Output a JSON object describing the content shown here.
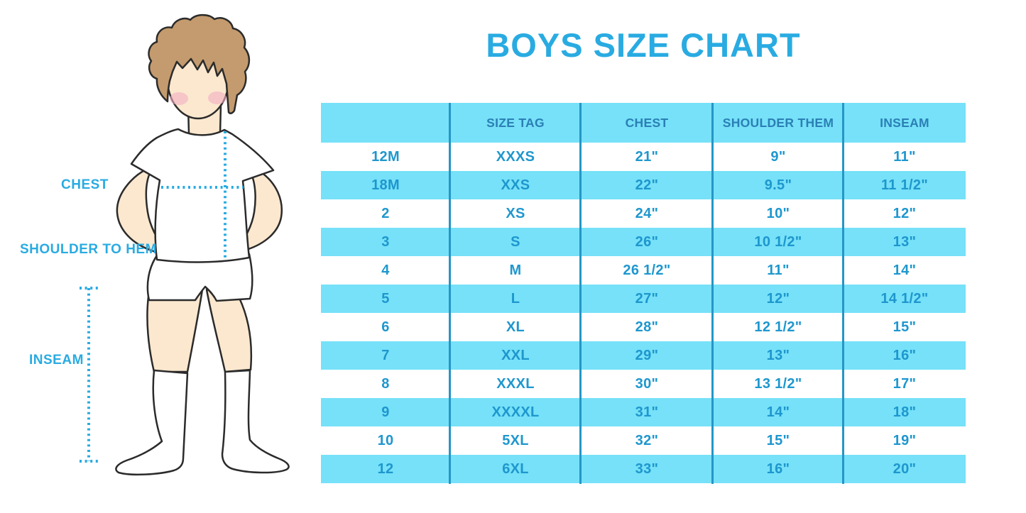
{
  "title": "BOYS SIZE CHART",
  "colors": {
    "title_blue": "#29ABE2",
    "label_blue": "#29ABE2",
    "table_band_cyan": "#76E1F8",
    "header_text_blue": "#2B7FB5",
    "cell_text_blue": "#1E97CE",
    "grid_line_blue": "#2596C6",
    "hair_brown": "#C49B6E",
    "skin_tone": "#FBE8CF",
    "cheek_pink": "#F2AEC1"
  },
  "figure": {
    "labels": {
      "chest": "CHEST",
      "shoulder_to_hem": "SHOULDER TO HEM",
      "inseam": "INSEAM"
    }
  },
  "chart_data": {
    "type": "table",
    "title": "BOYS SIZE CHART",
    "columns": [
      "",
      "SIZE TAG",
      "CHEST",
      "SHOULDER THEM",
      "INSEAM"
    ],
    "rows": [
      [
        "12M",
        "XXXS",
        "21\"",
        "9\"",
        "11\""
      ],
      [
        "18M",
        "XXS",
        "22\"",
        "9.5\"",
        "11 1/2\""
      ],
      [
        "2",
        "XS",
        "24\"",
        "10\"",
        "12\""
      ],
      [
        "3",
        "S",
        "26\"",
        "10 1/2\"",
        "13\""
      ],
      [
        "4",
        "M",
        "26 1/2\"",
        "11\"",
        "14\""
      ],
      [
        "5",
        "L",
        "27\"",
        "12\"",
        "14 1/2\""
      ],
      [
        "6",
        "XL",
        "28\"",
        "12 1/2\"",
        "15\""
      ],
      [
        "7",
        "XXL",
        "29\"",
        "13\"",
        "16\""
      ],
      [
        "8",
        "XXXL",
        "30\"",
        "13 1/2\"",
        "17\""
      ],
      [
        "9",
        "XXXXL",
        "31\"",
        "14\"",
        "18\""
      ],
      [
        "10",
        "5XL",
        "32\"",
        "15\"",
        "19\""
      ],
      [
        "12",
        "6XL",
        "33\"",
        "16\"",
        "20\""
      ]
    ],
    "layout": {
      "row_striping": "white/cyan alternating",
      "grid": "vertical separators only"
    }
  }
}
